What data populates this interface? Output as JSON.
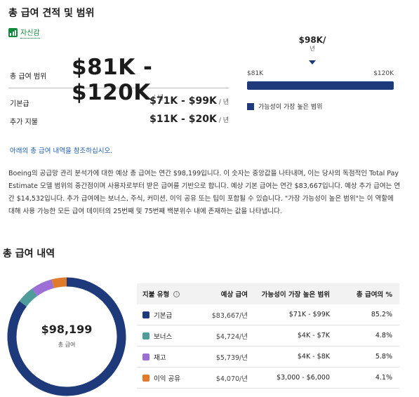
{
  "header": {
    "title": "총 급여 견적 및 범위"
  },
  "confidence": {
    "label": "자신감"
  },
  "total": {
    "label": "총 급여 범위",
    "value": "$81K - $120K",
    "per": "/ 년"
  },
  "base": {
    "label": "기본급",
    "value": "$71K - $99K",
    "per": "/ 년"
  },
  "additional": {
    "label": "추가 지불",
    "value": "$11K - $20K",
    "per": "/ 년"
  },
  "range_chart": {
    "median": "$98K/",
    "median_unit": "년",
    "low": "$81K",
    "high": "$120K",
    "legend": "가능성이 가장 높은 범위",
    "color": "#1e3a7b"
  },
  "link": {
    "text": "아래의 총 급여 내역을 참조하십시오."
  },
  "description": "Boeing의 공급망 관리 분석가에 대한 예상 총 급여는 연간 $98,199입니다. 이 숫자는 중앙값을 나타내며, 이는 당사의 독점적인 Total Pay Estimate 모델 범위의 중간점이며 사용자로부터 받은 급여를 기반으로 합니다. 예상 기본 급여는 연간 $83,667입니다. 예상 추가 급여는 연간 $14,532입니다. 추가 급여에는 보너스, 주식, 커미션, 이익 공유 또는 팁이 포함될 수 있습니다. \"가장 가능성이 높은 범위\"는 이 역할에 대해 사용 가능한 모든 급여 데이터의 25번째 및 75번째 백분위수 내에 존재하는 값을 나타냅니다.",
  "breakdown": {
    "title": "총 급여 내역",
    "donut_value": "$98,199",
    "donut_label": "총 급여",
    "headers": {
      "type": "지불 유형",
      "estimate": "예상 급여",
      "range": "가능성이 가장 높은 범위",
      "percent": "총 급여의 %"
    },
    "rows": [
      {
        "type": "기본급",
        "estimate": "$83,667/년",
        "range": "$71K - $99K",
        "percent": "85.2%",
        "share": 85.2,
        "color": "#1e3a7b"
      },
      {
        "type": "보너스",
        "estimate": "$4,724/년",
        "range": "$4K - $7K",
        "percent": "4.8%",
        "share": 4.8,
        "color": "#4f9d9b"
      },
      {
        "type": "재고",
        "estimate": "$5,739/년",
        "range": "$4K - $8K",
        "percent": "5.8%",
        "share": 5.8,
        "color": "#9d6fd6"
      },
      {
        "type": "이익 공유",
        "estimate": "$4,070/년",
        "range": "$3,000 - $6,000",
        "percent": "4.1%",
        "share": 4.1,
        "color": "#e07b2c"
      }
    ]
  }
}
